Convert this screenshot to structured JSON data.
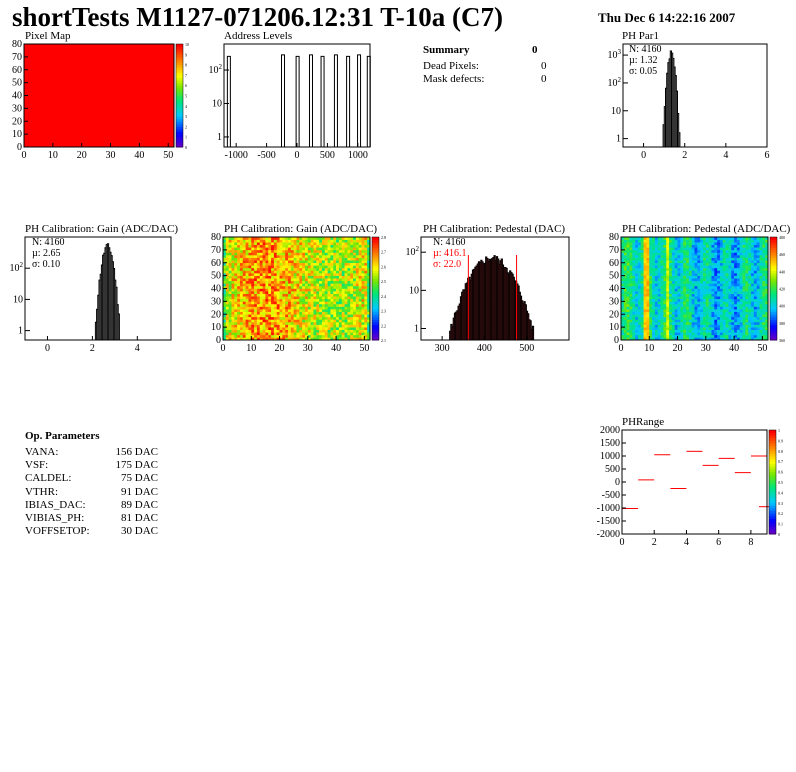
{
  "header": {
    "title": "shortTests M1127-071206.12:31 T-10a (C7)",
    "date": "Thu Dec  6 14:22:16 2007"
  },
  "colors": {
    "red": "#ff0000",
    "hist": "#000000",
    "pedestal_fill": "#a00000"
  },
  "summary": {
    "heading": "Summary",
    "heading_value": "0",
    "rows": [
      {
        "label": "Dead Pixels:",
        "value": "0"
      },
      {
        "label": "Mask defects:",
        "value": "0"
      }
    ]
  },
  "op_params": {
    "heading": "Op. Parameters",
    "rows": [
      {
        "label": "VANA:",
        "value": "156 DAC"
      },
      {
        "label": "VSF:",
        "value": "175 DAC"
      },
      {
        "label": "CALDEL:",
        "value": "75 DAC"
      },
      {
        "label": "VTHR:",
        "value": "91 DAC"
      },
      {
        "label": "IBIAS_DAC:",
        "value": "89 DAC"
      },
      {
        "label": "VIBIAS_PH:",
        "value": "81 DAC"
      },
      {
        "label": "VOFFSETOP:",
        "value": "30 DAC"
      }
    ]
  },
  "chart_data": [
    {
      "id": "pixel_map",
      "type": "heatmap",
      "title": "Pixel Map",
      "xlim": [
        0,
        52
      ],
      "ylim": [
        0,
        80
      ],
      "xticks": [
        "0",
        "10",
        "20",
        "30",
        "40",
        "50"
      ],
      "yticks": [
        "0",
        "10",
        "20",
        "30",
        "40",
        "50",
        "60",
        "70",
        "80"
      ],
      "zlim": [
        0,
        10
      ],
      "zticks": [
        "0",
        "1",
        "2",
        "3",
        "4",
        "5",
        "6",
        "7",
        "8",
        "9",
        "10"
      ],
      "uniform_value": 10
    },
    {
      "id": "address_levels",
      "type": "line",
      "title": "Address Levels",
      "xlim": [
        -1200,
        1200
      ],
      "log_y": true,
      "xticks": [
        "-1000",
        "-500",
        "0",
        "500",
        "1000"
      ],
      "yticks": [
        "1",
        "10",
        "10^2"
      ],
      "peaks_x": [
        -1120,
        -230,
        10,
        230,
        420,
        640,
        840,
        1020,
        1180
      ],
      "peak_height": 300
    },
    {
      "id": "ph_par1",
      "type": "line",
      "title": "PH Par1",
      "xlim": [
        -1,
        6
      ],
      "log_y": true,
      "xticks": [
        "0",
        "2",
        "4",
        "6"
      ],
      "yticks": [
        "1",
        "10",
        "10^2",
        "10^3"
      ],
      "stats": {
        "n": "N: 4160",
        "mu": "µ: 1.32",
        "sigma": "σ: 0.05"
      },
      "peak_x": 1.32,
      "peak_height": 1200
    },
    {
      "id": "ph_gain",
      "type": "line",
      "title": "PH Calibration: Gain (ADC/DAC)",
      "xlim": [
        -1,
        5.5
      ],
      "log_y": true,
      "xticks": [
        "0",
        "2",
        "4"
      ],
      "yticks": [
        "1",
        "10",
        "10^2"
      ],
      "stats": {
        "n": "N: 4160",
        "mu": "µ: 2.65",
        "sigma": "σ: 0.10"
      },
      "peak_x": 2.65,
      "peak_height": 500
    },
    {
      "id": "ph_gain_map",
      "type": "heatmap",
      "title": "PH Calibration: Gain (ADC/DAC)",
      "xlim": [
        0,
        52
      ],
      "ylim": [
        0,
        80
      ],
      "xticks": [
        "0",
        "10",
        "20",
        "30",
        "40",
        "50"
      ],
      "yticks": [
        "0",
        "10",
        "20",
        "30",
        "40",
        "50",
        "60",
        "70",
        "80"
      ],
      "zticks": [
        "2.1",
        "2.2",
        "2.3",
        "2.4",
        "2.5",
        "2.6",
        "2.7",
        "2.8"
      ]
    },
    {
      "id": "ph_pedestal",
      "type": "line",
      "title": "PH Calibration: Pedestal (DAC)",
      "xlim": [
        250,
        600
      ],
      "log_y": true,
      "xticks": [
        "300",
        "400",
        "500"
      ],
      "yticks": [
        "1",
        "10",
        "10^2"
      ],
      "stats": {
        "n": "N: 4160",
        "mu": "µ: 416.1",
        "sigma": "σ: 22.0"
      },
      "peak_x": 416,
      "peak_height": 70,
      "cut_lines": [
        362,
        476
      ]
    },
    {
      "id": "ph_pedestal_map",
      "type": "heatmap",
      "title": "PH Calibration: Pedestal (ADC/DAC)",
      "xlim": [
        0,
        52
      ],
      "ylim": [
        0,
        80
      ],
      "xticks": [
        "0",
        "10",
        "20",
        "30",
        "40",
        "50"
      ],
      "yticks": [
        "0",
        "10",
        "20",
        "30",
        "40",
        "50",
        "60",
        "70",
        "80"
      ],
      "zticks": [
        "360",
        "380",
        "400",
        "420",
        "440",
        "460",
        "480"
      ]
    },
    {
      "id": "ph_range",
      "type": "scatter",
      "title": "PHRange",
      "xlim": [
        0,
        9
      ],
      "ylim": [
        -2000,
        2000
      ],
      "xticks": [
        "0",
        "2",
        "4",
        "6",
        "8"
      ],
      "yticks": [
        "2000",
        "1500",
        "1000",
        "500",
        "0",
        "-500",
        "-1000",
        "-1500",
        "-2000"
      ],
      "zticks": [
        "0",
        "0.1",
        "0.2",
        "0.3",
        "0.4",
        "0.5",
        "0.6",
        "0.7",
        "0.8",
        "0.9",
        "1"
      ],
      "points": [
        {
          "x": 0.5,
          "y": -1020
        },
        {
          "x": 1.5,
          "y": 80
        },
        {
          "x": 2.5,
          "y": 1050
        },
        {
          "x": 3.5,
          "y": -250
        },
        {
          "x": 4.5,
          "y": 1180
        },
        {
          "x": 5.5,
          "y": 640
        },
        {
          "x": 6.5,
          "y": 910
        },
        {
          "x": 7.5,
          "y": 360
        },
        {
          "x": 8.5,
          "y": 1000
        },
        {
          "x": 9.0,
          "y": -950
        }
      ]
    }
  ]
}
